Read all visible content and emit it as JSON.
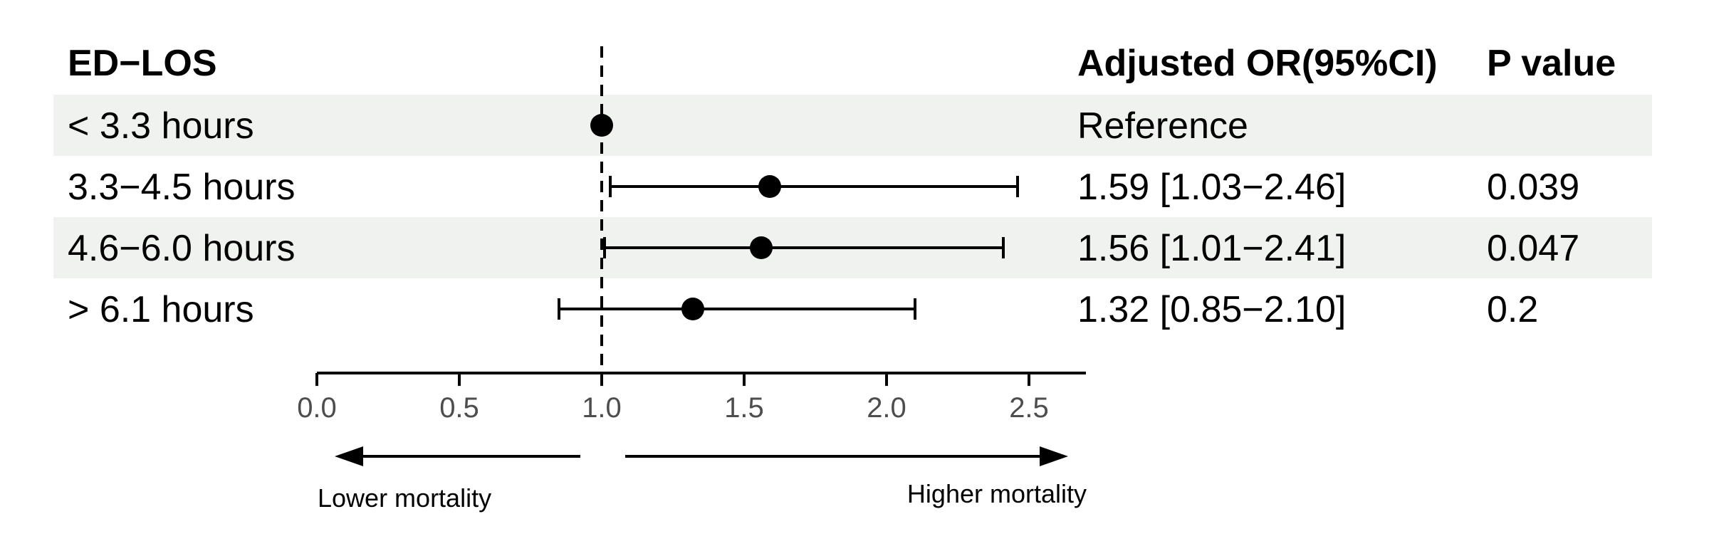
{
  "headers": {
    "group": "ED−LOS",
    "or": "Adjusted OR(95%CI)",
    "p": "P value"
  },
  "rows": [
    {
      "label": "< 3.3 hours",
      "or_text": "Reference",
      "p_text": ""
    },
    {
      "label": "3.3−4.5 hours",
      "or_text": "1.59 [1.03−2.46]",
      "p_text": "0.039"
    },
    {
      "label": "4.6−6.0 hours",
      "or_text": "1.56 [1.01−2.41]",
      "p_text": "0.047"
    },
    {
      "label": "> 6.1 hours",
      "or_text": "1.32 [0.85−2.10]",
      "p_text": "0.2"
    }
  ],
  "directions": {
    "lower": "Lower mortality",
    "higher": "Higher mortality"
  },
  "colors": {
    "stripe": "#f0f2f0",
    "ink": "#000000",
    "tick_text": "#4d4d4d"
  },
  "chart_data": {
    "type": "forest",
    "x_axis": {
      "ticks": [
        0.0,
        0.5,
        1.0,
        1.5,
        2.0,
        2.5
      ],
      "tick_labels": [
        "0.0",
        "0.5",
        "1.0",
        "1.5",
        "2.0",
        "2.5"
      ],
      "xlim": [
        0.0,
        2.7
      ]
    },
    "reference_line": 1.0,
    "points": [
      {
        "estimate": 1.0,
        "lower": null,
        "upper": null
      },
      {
        "estimate": 1.59,
        "lower": 1.03,
        "upper": 2.46
      },
      {
        "estimate": 1.56,
        "lower": 1.01,
        "upper": 2.41
      },
      {
        "estimate": 1.32,
        "lower": 0.85,
        "upper": 2.1
      }
    ]
  }
}
